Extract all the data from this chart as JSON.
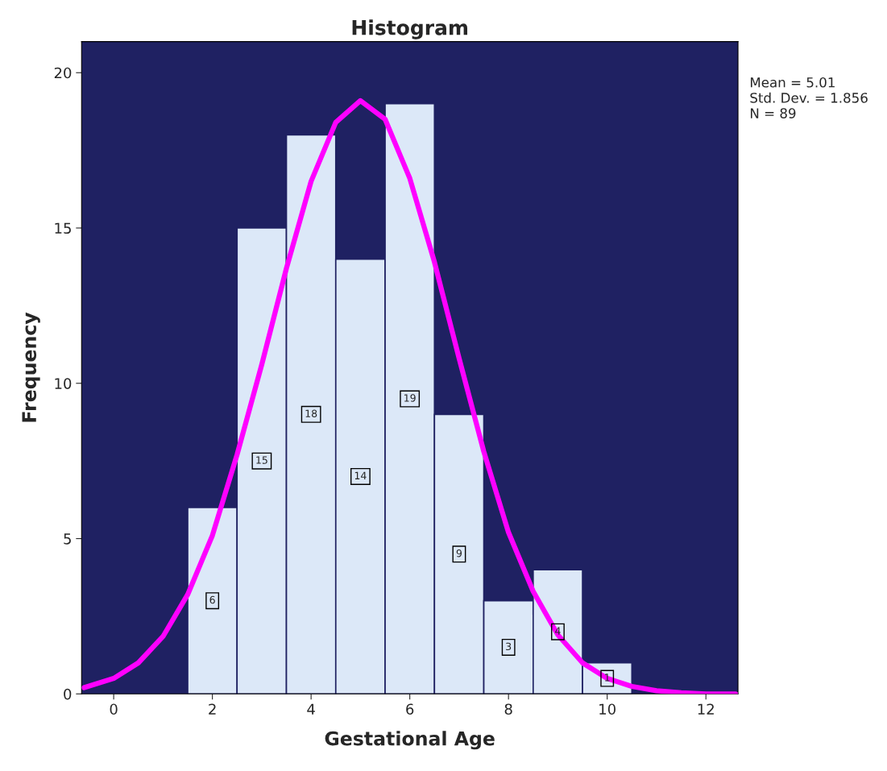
{
  "chart_data": {
    "type": "histogram",
    "title": "Histogram",
    "xlabel": "Gestational Age",
    "ylabel": "Frequency",
    "bins": [
      1.5,
      2.5,
      3.5,
      4.5,
      5.5,
      6.5,
      7.5,
      8.5,
      9.5,
      10.5
    ],
    "values": [
      6,
      15,
      18,
      14,
      19,
      9,
      3,
      4,
      1
    ],
    "color": "#dce8f8",
    "value_labels": [
      "6",
      "15",
      "18",
      "14",
      "19",
      "9",
      "3",
      "4",
      "1"
    ],
    "series": [
      {
        "type": "line",
        "color": "#ff00ff",
        "x": [
          -0.6,
          0,
          0.5,
          1,
          1.5,
          2,
          2.5,
          3,
          3.5,
          4,
          4.5,
          5,
          5.5,
          6,
          6.5,
          7,
          7.5,
          8,
          8.5,
          9,
          9.5,
          10,
          10.5,
          11,
          11.5,
          12,
          12.6
        ],
        "values": [
          0.2,
          0.5,
          1.0,
          1.85,
          3.2,
          5.1,
          7.7,
          10.6,
          13.7,
          16.5,
          18.4,
          19.1,
          18.5,
          16.6,
          13.9,
          10.8,
          7.8,
          5.2,
          3.3,
          1.9,
          1.0,
          0.5,
          0.24,
          0.1,
          0.04,
          0.0,
          0.0
        ]
      }
    ],
    "annotations": [
      "Mean = 5.01",
      "Std. Dev. = 1.856",
      "N = 89"
    ],
    "xlim": [
      -0.65,
      12.65
    ],
    "xticks": [
      0,
      2,
      4,
      6,
      8,
      10,
      12
    ],
    "ylim": [
      0,
      21
    ],
    "yticks": [
      0,
      5,
      10,
      15,
      20
    ],
    "grid": false,
    "legend": false
  }
}
